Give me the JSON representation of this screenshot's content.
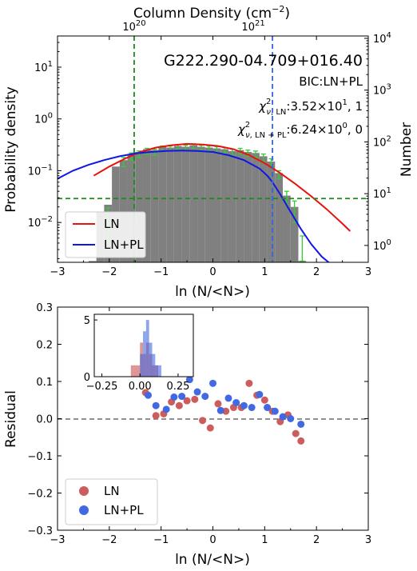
{
  "chart_data": [
    {
      "type": "histogram",
      "title": "G222.290-04.709+016.40",
      "xlabel": "ln (N/<N>)",
      "ylabel": "Probability density",
      "ylabel_right": "Number",
      "xlabel_top": "Column Density (cm",
      "xlabel_top_sup": "−2",
      "xlabel_top_close": ")",
      "xlim": [
        -3,
        3
      ],
      "ylim": [
        0.0017,
        40
      ],
      "yscale": "log",
      "xticks": [
        "−3",
        "−2",
        "−1",
        "0",
        "1",
        "2",
        "3"
      ],
      "yticks": [
        {
          "value": 0.01,
          "base": "10",
          "exp": "−2"
        },
        {
          "value": 0.1,
          "base": "10",
          "exp": "−1"
        },
        {
          "value": 1,
          "base": "10",
          "exp": "0"
        },
        {
          "value": 10,
          "base": "10",
          "exp": "1"
        }
      ],
      "right_ticks": [
        {
          "value": 1,
          "base": "10",
          "exp": "0"
        },
        {
          "value": 10,
          "base": "10",
          "exp": "1"
        },
        {
          "value": 100,
          "base": "10",
          "exp": "2"
        },
        {
          "value": 1000,
          "base": "10",
          "exp": "3"
        },
        {
          "value": 10000,
          "base": "10",
          "exp": "4"
        }
      ],
      "top_ticks": [
        {
          "ln_value": -1.52,
          "base": "10",
          "exp": "20"
        },
        {
          "ln_value": 0.78,
          "base": "10",
          "exp": "21"
        }
      ],
      "bic_text": "BIC:LN+PL",
      "chi_ln_value": ":3.52×10",
      "chi_ln_exp": "1",
      "chi_ln_tail": ", 1",
      "chi_lnpl_value": ":6.24×10",
      "chi_lnpl_exp": "0",
      "chi_lnpl_tail": ", 0",
      "bin_width": 0.15,
      "bins": [
        {
          "x": -2.4,
          "density": 0.0018
        },
        {
          "x": -2.25,
          "density": 0.016
        },
        {
          "x": -2.1,
          "density": 0.022
        },
        {
          "x": -1.95,
          "density": 0.12
        },
        {
          "x": -1.8,
          "density": 0.16
        },
        {
          "x": -1.65,
          "density": 0.2
        },
        {
          "x": -1.5,
          "density": 0.23
        },
        {
          "x": -1.35,
          "density": 0.26
        },
        {
          "x": -1.2,
          "density": 0.25
        },
        {
          "x": -1.05,
          "density": 0.29
        },
        {
          "x": -0.9,
          "density": 0.28
        },
        {
          "x": -0.75,
          "density": 0.3
        },
        {
          "x": -0.6,
          "density": 0.29
        },
        {
          "x": -0.45,
          "density": 0.31
        },
        {
          "x": -0.3,
          "density": 0.29
        },
        {
          "x": -0.15,
          "density": 0.28
        },
        {
          "x": 0.0,
          "density": 0.27
        },
        {
          "x": 0.15,
          "density": 0.26
        },
        {
          "x": 0.3,
          "density": 0.24
        },
        {
          "x": 0.45,
          "density": 0.25
        },
        {
          "x": 0.6,
          "density": 0.23
        },
        {
          "x": 0.75,
          "density": 0.22
        },
        {
          "x": 0.9,
          "density": 0.19
        },
        {
          "x": 1.05,
          "density": 0.15
        },
        {
          "x": 1.2,
          "density": 0.09
        },
        {
          "x": 1.35,
          "density": 0.033
        },
        {
          "x": 1.5,
          "density": 0.02
        },
        {
          "x": 1.65,
          "density": 0.0018
        }
      ],
      "error_points": [
        {
          "x": -2.1,
          "y": 0.01,
          "lo": 0.0045,
          "hi": 0.019
        },
        {
          "x": -1.8,
          "y": 0.15,
          "lo": 0.12,
          "hi": 0.18
        },
        {
          "x": -1.65,
          "y": 0.19,
          "lo": 0.16,
          "hi": 0.22
        },
        {
          "x": -1.5,
          "y": 0.21,
          "lo": 0.18,
          "hi": 0.24
        },
        {
          "x": -1.35,
          "y": 0.24,
          "lo": 0.21,
          "hi": 0.27
        },
        {
          "x": -1.2,
          "y": 0.23,
          "lo": 0.2,
          "hi": 0.26
        },
        {
          "x": -1.05,
          "y": 0.27,
          "lo": 0.24,
          "hi": 0.3
        },
        {
          "x": -0.9,
          "y": 0.27,
          "lo": 0.24,
          "hi": 0.3
        },
        {
          "x": -0.75,
          "y": 0.29,
          "lo": 0.26,
          "hi": 0.32
        },
        {
          "x": -0.6,
          "y": 0.28,
          "lo": 0.25,
          "hi": 0.31
        },
        {
          "x": -0.45,
          "y": 0.3,
          "lo": 0.27,
          "hi": 0.33
        },
        {
          "x": -0.3,
          "y": 0.28,
          "lo": 0.25,
          "hi": 0.31
        },
        {
          "x": -0.15,
          "y": 0.27,
          "lo": 0.24,
          "hi": 0.3
        },
        {
          "x": 0.0,
          "y": 0.26,
          "lo": 0.23,
          "hi": 0.29
        },
        {
          "x": 0.15,
          "y": 0.25,
          "lo": 0.22,
          "hi": 0.28
        },
        {
          "x": 0.3,
          "y": 0.23,
          "lo": 0.2,
          "hi": 0.26
        },
        {
          "x": 0.45,
          "y": 0.24,
          "lo": 0.21,
          "hi": 0.27
        },
        {
          "x": 0.6,
          "y": 0.22,
          "lo": 0.19,
          "hi": 0.25
        },
        {
          "x": 0.75,
          "y": 0.21,
          "lo": 0.18,
          "hi": 0.24
        },
        {
          "x": 0.9,
          "y": 0.18,
          "lo": 0.15,
          "hi": 0.21
        },
        {
          "x": 1.05,
          "y": 0.14,
          "lo": 0.12,
          "hi": 0.17
        },
        {
          "x": 1.2,
          "y": 0.085,
          "lo": 0.07,
          "hi": 0.1
        },
        {
          "x": 1.35,
          "y": 0.03,
          "lo": 0.022,
          "hi": 0.04
        },
        {
          "x": 1.5,
          "y": 0.018,
          "lo": 0.01,
          "hi": 0.026
        },
        {
          "x": 1.65,
          "y": 0.0035,
          "lo": 0.0018,
          "hi": 0.0055
        }
      ],
      "series": [
        {
          "name": "LN",
          "color": "#e8120c",
          "x": [
            -2.3,
            -2.0,
            -1.7,
            -1.4,
            -1.1,
            -0.8,
            -0.5,
            -0.2,
            0.1,
            0.4,
            0.7,
            1.0,
            1.3,
            1.6,
            1.9,
            2.2,
            2.5,
            2.65
          ],
          "y": [
            0.08,
            0.12,
            0.17,
            0.23,
            0.28,
            0.31,
            0.33,
            0.32,
            0.3,
            0.26,
            0.2,
            0.14,
            0.09,
            0.055,
            0.032,
            0.018,
            0.0095,
            0.0068
          ]
        },
        {
          "name": "LN+PL",
          "color": "#1016e6",
          "x": [
            -3.0,
            -2.7,
            -2.4,
            -2.1,
            -1.8,
            -1.5,
            -1.2,
            -0.9,
            -0.6,
            -0.3,
            0.0,
            0.3,
            0.6,
            0.9,
            1.05,
            1.15,
            1.3,
            1.5,
            1.7,
            1.9,
            2.1,
            2.3,
            2.4
          ],
          "y": [
            0.07,
            0.1,
            0.13,
            0.16,
            0.19,
            0.215,
            0.23,
            0.24,
            0.245,
            0.24,
            0.23,
            0.2,
            0.16,
            0.11,
            0.08,
            0.06,
            0.035,
            0.016,
            0.0075,
            0.0038,
            0.0022,
            0.0015,
            0.0013
          ]
        }
      ],
      "vlines": [
        {
          "x": -1.52,
          "color": "#1a8a1a"
        },
        {
          "x": 1.15,
          "color": "#3366dd"
        }
      ],
      "hline": {
        "y": 0.029,
        "color": "#1a8a1a"
      },
      "legend": {
        "placement": "lower-left",
        "entries": [
          "LN",
          "LN+PL"
        ]
      }
    },
    {
      "type": "scatter",
      "xlabel": "ln (N/<N>)",
      "ylabel": "Residual",
      "xlim": [
        -3,
        3
      ],
      "ylim": [
        -0.3,
        0.3
      ],
      "xticks": [
        "−3",
        "−2",
        "−1",
        "0",
        "1",
        "2",
        "3"
      ],
      "yticks": [
        "−0.3",
        "−0.2",
        "−0.1",
        "0.0",
        "0.1",
        "0.2",
        "0.3"
      ],
      "hline": {
        "y": 0,
        "style": "dashed",
        "color": "#808080"
      },
      "series": [
        {
          "name": "LN",
          "color": "#cd5c5c",
          "x": [
            -1.3,
            -1.1,
            -0.95,
            -0.8,
            -0.65,
            -0.5,
            -0.35,
            -0.2,
            -0.05,
            0.1,
            0.25,
            0.4,
            0.55,
            0.7,
            0.85,
            1.0,
            1.15,
            1.3,
            1.45,
            1.6,
            1.7
          ],
          "y": [
            0.07,
            0.008,
            0.013,
            0.045,
            0.035,
            0.048,
            0.052,
            -0.005,
            -0.025,
            0.04,
            0.02,
            0.03,
            0.03,
            0.095,
            0.063,
            0.05,
            0.02,
            -0.008,
            0.01,
            -0.04,
            -0.06
          ]
        },
        {
          "name": "LN+PL",
          "color": "#4169e1",
          "x": [
            -1.25,
            -1.1,
            -0.9,
            -0.75,
            -0.6,
            -0.45,
            -0.3,
            -0.15,
            0.0,
            0.15,
            0.3,
            0.45,
            0.6,
            0.75,
            0.9,
            1.05,
            1.2,
            1.35,
            1.5,
            1.7
          ],
          "y": [
            0.063,
            0.035,
            0.025,
            0.058,
            0.06,
            0.105,
            0.072,
            0.06,
            0.095,
            0.022,
            0.055,
            0.043,
            0.035,
            0.03,
            0.065,
            0.03,
            0.02,
            0.005,
            0.0,
            -0.015
          ]
        }
      ],
      "legend": {
        "placement": "lower-left",
        "entries": [
          "LN",
          "LN+PL"
        ]
      },
      "inset": {
        "type": "histogram",
        "xlim": [
          -0.3,
          0.35
        ],
        "ylim": [
          0,
          5.5
        ],
        "xticks": [
          "−0.25",
          "0.00",
          "0.25"
        ],
        "yticks": [
          "0",
          "5"
        ],
        "bin_width": 0.02,
        "LN_bins": [
          {
            "x": -0.06,
            "count": 1
          },
          {
            "x": -0.04,
            "count": 1
          },
          {
            "x": -0.02,
            "count": 1
          },
          {
            "x": 0.0,
            "count": 3
          },
          {
            "x": 0.02,
            "count": 2
          },
          {
            "x": 0.04,
            "count": 3
          },
          {
            "x": 0.06,
            "count": 2
          },
          {
            "x": 0.08,
            "count": 1
          },
          {
            "x": 0.1,
            "count": 1
          }
        ],
        "LNPL_bins": [
          {
            "x": 0.0,
            "count": 2
          },
          {
            "x": 0.02,
            "count": 4
          },
          {
            "x": 0.04,
            "count": 5
          },
          {
            "x": 0.06,
            "count": 3
          },
          {
            "x": 0.08,
            "count": 2
          },
          {
            "x": 0.1,
            "count": 1
          },
          {
            "x": 0.12,
            "count": 1
          }
        ]
      }
    }
  ]
}
